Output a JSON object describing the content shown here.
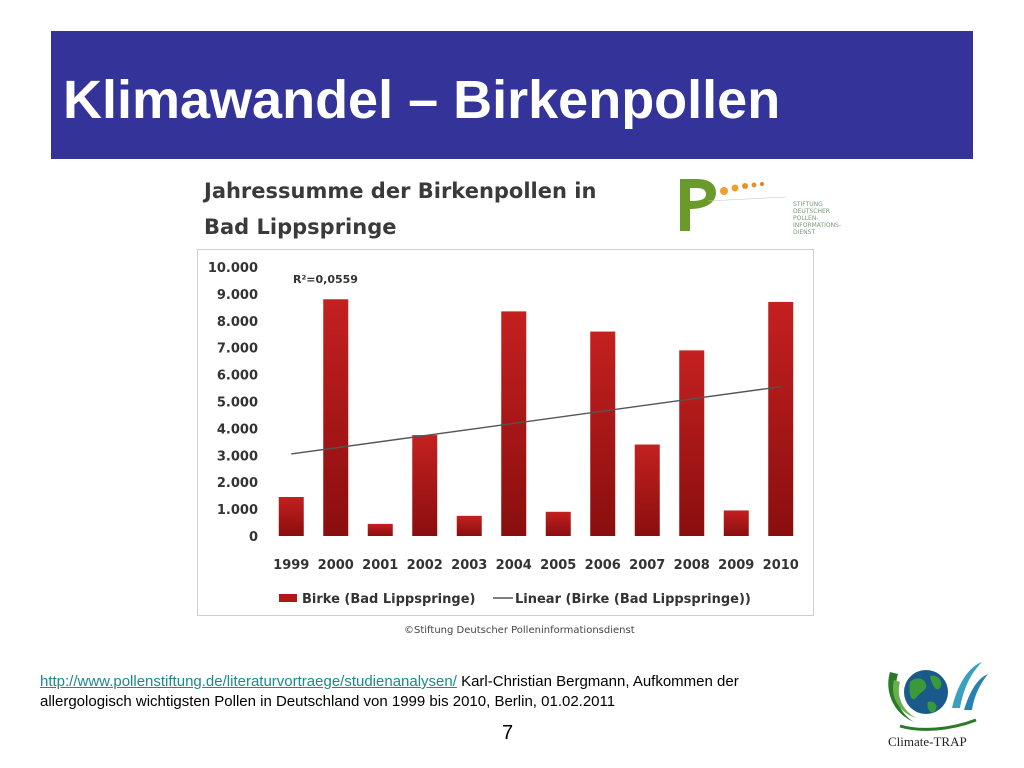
{
  "slide": {
    "title": "Klimawandel – Birkenpollen",
    "page_number": "7",
    "source_link": "http://www.pollenstiftung.de/literaturvortraege/studienanalysen/",
    "source_text": " Karl-Christian Bergmann, Aufkommen der allergologisch wichtigsten Pollen in Deutschland von 1999 bis 2010, Berlin, 01.02.2011",
    "brand_label": "Climate-TRAP",
    "logo_text": "STIFTUNG DEUTSCHER POLLEN- INFORMATIONS- DIENST",
    "copyright": "©Stiftung Deutscher Polleninformationsdienst"
  },
  "chart_data": {
    "type": "bar",
    "title_line1": "Jahressumme der Birkenpollen in",
    "title_line2": "Bad Lippspringe",
    "categories": [
      "1999",
      "2000",
      "2001",
      "2002",
      "2003",
      "2004",
      "2005",
      "2006",
      "2007",
      "2008",
      "2009",
      "2010"
    ],
    "series": [
      {
        "name": "Birke (Bad Lippspringe)",
        "values": [
          1450,
          8800,
          450,
          3750,
          750,
          8350,
          900,
          7600,
          3400,
          6900,
          950,
          8700
        ],
        "color": "#b01818"
      }
    ],
    "trendline": {
      "name": "Linear (Birke (Bad Lippspringe))",
      "start": 3050,
      "end": 5550,
      "color": "#555555"
    },
    "annotation": "R²=0,0559",
    "ylim": [
      0,
      10000
    ],
    "yticks": [
      "0",
      "1.000",
      "2.000",
      "3.000",
      "4.000",
      "5.000",
      "6.000",
      "7.000",
      "8.000",
      "9.000",
      "10.000"
    ],
    "legend_position": "bottom",
    "grid": false
  }
}
